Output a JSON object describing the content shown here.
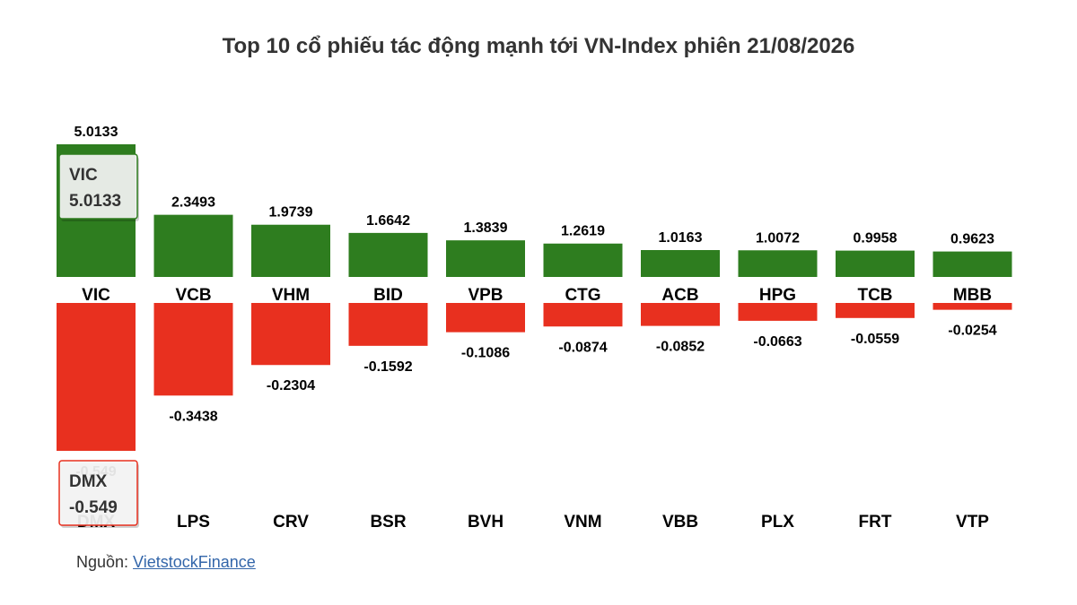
{
  "chart_data": {
    "type": "bar",
    "title": "Top 10 cổ phiếu tác động mạnh tới VN-Index phiên 21/08/2026",
    "colors": {
      "positive": "#2e7d1f",
      "negative": "#e8301f"
    },
    "positive": {
      "categories": [
        "VIC",
        "VCB",
        "VHM",
        "BID",
        "VPB",
        "CTG",
        "ACB",
        "HPG",
        "TCB",
        "MBB"
      ],
      "values": [
        5.0133,
        2.3493,
        1.9739,
        1.6642,
        1.3839,
        1.2619,
        1.0163,
        1.0072,
        0.9958,
        0.9623
      ],
      "labels": [
        "5.0133",
        "2.3493",
        "1.9739",
        "1.6642",
        "1.3839",
        "1.2619",
        "1.0163",
        "1.0072",
        "0.9958",
        "0.9623"
      ]
    },
    "negative": {
      "categories": [
        "DMX",
        "LPS",
        "CRV",
        "BSR",
        "BVH",
        "VNM",
        "VBB",
        "PLX",
        "FRT",
        "VTP"
      ],
      "values": [
        -0.549,
        -0.3438,
        -0.2304,
        -0.1592,
        -0.1086,
        -0.0874,
        -0.0852,
        -0.0663,
        -0.0559,
        -0.0254
      ],
      "labels": [
        "-0.549",
        "-0.3438",
        "-0.2304",
        "-0.1592",
        "-0.1086",
        "-0.0874",
        "-0.0852",
        "-0.0663",
        "-0.0559",
        "-0.0254"
      ]
    },
    "tooltips": [
      {
        "name": "VIC",
        "value": "5.0133",
        "polarity": "positive"
      },
      {
        "name": "DMX",
        "value": "-0.549",
        "polarity": "negative"
      }
    ]
  },
  "source": {
    "prefix": "Nguồn: ",
    "link_text": "VietstockFinance"
  }
}
